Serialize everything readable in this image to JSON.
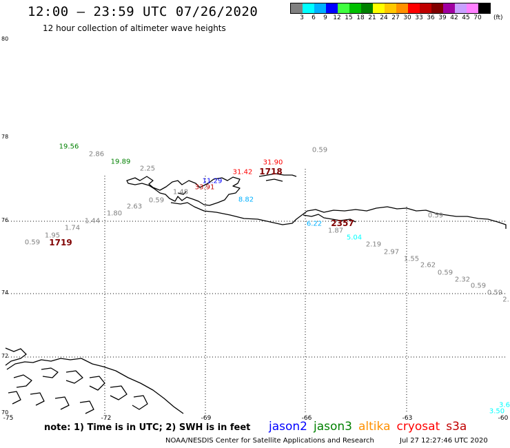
{
  "header": {
    "title": "12:00 – 23:59 UTC 07/26/2020",
    "subtitle": "12 hour collection of altimeter wave heights"
  },
  "color_scale": {
    "colors": [
      "#808080",
      "#00ffff",
      "#00b0ff",
      "#0000ff",
      "#40ff40",
      "#00c000",
      "#008000",
      "#ffff00",
      "#ffc800",
      "#ff9000",
      "#ff0000",
      "#c00000",
      "#800000",
      "#a000a0",
      "#c8a0ff",
      "#ff80ff",
      "#000000"
    ],
    "labels": [
      "3",
      "6",
      "9",
      "12",
      "15",
      "18",
      "21",
      "24",
      "27",
      "30",
      "33",
      "36",
      "39",
      "42",
      "45",
      "70"
    ],
    "units": "(ft)"
  },
  "axes": {
    "latitude_labels": [
      "80",
      "78",
      "76",
      "74",
      "72",
      "70"
    ],
    "longitude_labels": [
      "-75",
      "-72",
      "-69",
      "-66",
      "-63",
      "-60"
    ]
  },
  "observations": [
    {
      "value": "19.56",
      "color": "#008000"
    },
    {
      "value": "2.86",
      "color": "#808080"
    },
    {
      "value": "19.89",
      "color": "#008000"
    },
    {
      "value": "2.25",
      "color": "#808080"
    },
    {
      "value": "0.59",
      "color": "#808080"
    },
    {
      "value": "31.90",
      "color": "#ff0000"
    },
    {
      "value": "31.42",
      "color": "#ff0000"
    },
    {
      "value": "11.29",
      "color": "#0000ff"
    },
    {
      "value": "33.91",
      "color": "#c00000"
    },
    {
      "value": "1.48",
      "color": "#808080"
    },
    {
      "value": "8.82",
      "color": "#00b0ff"
    },
    {
      "value": "0.59",
      "color": "#808080"
    },
    {
      "value": "2.63",
      "color": "#808080"
    },
    {
      "value": "1.80",
      "color": "#808080"
    },
    {
      "value": "1.44",
      "color": "#808080"
    },
    {
      "value": "1.74",
      "color": "#808080"
    },
    {
      "value": "1.95",
      "color": "#808080"
    },
    {
      "value": "0.59",
      "color": "#808080"
    },
    {
      "value": "6.22",
      "color": "#00b0ff"
    },
    {
      "value": "1.87",
      "color": "#808080"
    },
    {
      "value": "5.04",
      "color": "#00ffff"
    },
    {
      "value": "2.19",
      "color": "#808080"
    },
    {
      "value": "2.97",
      "color": "#808080"
    },
    {
      "value": "1.55",
      "color": "#808080"
    },
    {
      "value": "2.62",
      "color": "#808080"
    },
    {
      "value": "0.59",
      "color": "#808080"
    },
    {
      "value": "2.32",
      "color": "#808080"
    },
    {
      "value": "0.59",
      "color": "#808080"
    },
    {
      "value": "0.59",
      "color": "#808080"
    },
    {
      "value": "2.",
      "color": "#808080"
    },
    {
      "value": "3.6",
      "color": "#00ffff"
    },
    {
      "value": "3.50",
      "color": "#00ffff"
    },
    {
      "value": "0.59",
      "color": "#808080"
    }
  ],
  "pass_times": [
    {
      "value": "1718",
      "color": "#800000"
    },
    {
      "value": "1719",
      "color": "#800000"
    },
    {
      "value": "2357",
      "color": "#800000"
    }
  ],
  "footer": {
    "note": "note:  1) Time is in UTC;  2) SWH is in feet",
    "satellites": [
      {
        "name": "jason2",
        "color": "#0000ff"
      },
      {
        "name": "jason3",
        "color": "#008000"
      },
      {
        "name": "altika",
        "color": "#ff9000"
      },
      {
        "name": "cryosat",
        "color": "#ff0000"
      },
      {
        "name": "s3a",
        "color": "#c00000"
      }
    ],
    "credit": "NOAA/NESDIS Center for Satellite Applications and Research",
    "timestamp": "Jul 27 12:27:46 UTC 2020"
  }
}
